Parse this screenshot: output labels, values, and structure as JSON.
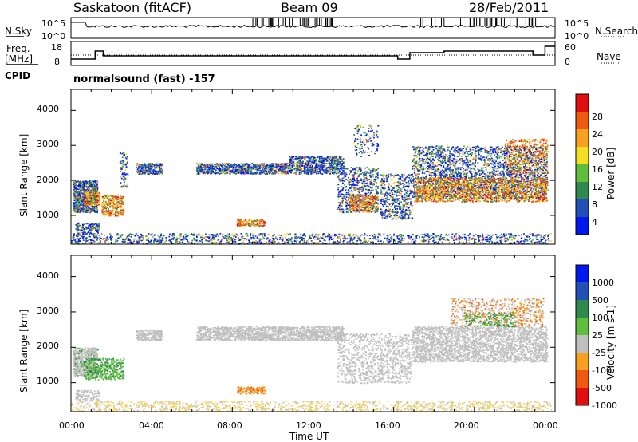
{
  "header": {
    "radar": "Saskatoon (fitACF)",
    "beam": "Beam 09",
    "date": "28/Feb/2011"
  },
  "noise_panel": {
    "left_label": "N.Sky",
    "right_label": "N.Search",
    "left_ticks": [
      "10^5",
      "10^0"
    ],
    "right_ticks": [
      "10^5",
      "10^0"
    ]
  },
  "freq_panel": {
    "left_label_1": "Freq.",
    "left_label_2": "[MHz]",
    "right_label": "Nave",
    "left_ticks": [
      "18",
      "8"
    ],
    "right_ticks": [
      "60",
      "0"
    ]
  },
  "cpid": {
    "label": "CPID",
    "program": "normalsound (fast) -157"
  },
  "colors": {
    "scale": [
      "#0018f0",
      "#2050b8",
      "#2e8a4a",
      "#5fbf3c",
      "#f0e020",
      "#f8a020",
      "#f05a10",
      "#e01010"
    ],
    "ground_scatter": "#bfbfbf"
  },
  "chart_data": [
    {
      "type": "heatmap",
      "quantity": "Power",
      "ylabel": "Slant Range [km]",
      "xlabel": "",
      "yticks": [
        1000,
        2000,
        3000,
        4000
      ],
      "ylim": [
        180,
        4600
      ],
      "xticks": [
        "00:00",
        "04:00",
        "08:00",
        "12:00",
        "16:00",
        "20:00",
        "00:00"
      ],
      "xlim_hours": [
        0,
        24
      ],
      "colorbar": {
        "label": "Power [dB]",
        "ticks": [
          "28",
          "24",
          "20",
          "16",
          "12",
          "8",
          "4"
        ]
      }
    },
    {
      "type": "heatmap",
      "quantity": "Velocity",
      "ylabel": "Slant Range [km]",
      "xlabel": "Time UT",
      "yticks": [
        1000,
        2000,
        3000,
        4000
      ],
      "ylim": [
        180,
        4600
      ],
      "xticks": [
        "00:00",
        "04:00",
        "08:00",
        "12:00",
        "16:00",
        "20:00",
        "00:00"
      ],
      "xlim_hours": [
        0,
        24
      ],
      "colorbar": {
        "label": "Velocity [m s-1]",
        "ticks": [
          "1000",
          "500",
          "100",
          "25",
          "-25",
          "-100",
          "-500",
          "-1000"
        ]
      }
    }
  ]
}
